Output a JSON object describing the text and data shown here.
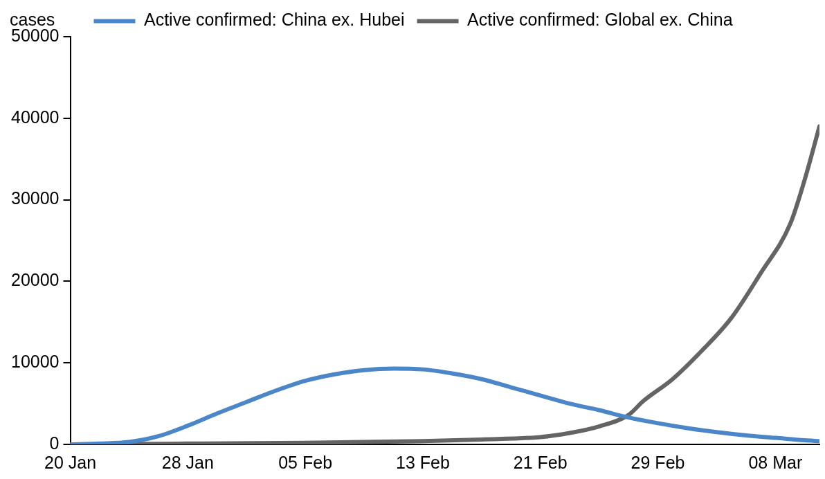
{
  "chart_data": {
    "type": "line",
    "ylabel": "cases",
    "legend": "top",
    "grid": false,
    "marker": "none",
    "line_style": "solid",
    "xlim": [
      "--01-20",
      "--03-11"
    ],
    "xticks": [
      {
        "value": "--01-20",
        "label": "20 Jan"
      },
      {
        "value": "--01-28",
        "label": "28 Jan"
      },
      {
        "value": "--02-05",
        "label": "05 Feb"
      },
      {
        "value": "--02-13",
        "label": "13 Feb"
      },
      {
        "value": "--02-21",
        "label": "21 Feb"
      },
      {
        "value": "--02-29",
        "label": "29 Feb"
      },
      {
        "value": "--03-08",
        "label": "08 Mar"
      }
    ],
    "ylim": [
      0,
      50000
    ],
    "yticks": [
      0,
      10000,
      20000,
      30000,
      40000,
      50000
    ],
    "series": [
      {
        "name": "Active confirmed: China ex. Hubei",
        "color": "#4a86c8",
        "x": [
          "--01-20",
          "--01-22",
          "--01-24",
          "--01-26",
          "--01-28",
          "--01-30",
          "--02-01",
          "--02-03",
          "--02-05",
          "--02-07",
          "--02-09",
          "--02-11",
          "--02-13",
          "--02-15",
          "--02-17",
          "--02-19",
          "--02-21",
          "--02-23",
          "--02-25",
          "--02-27",
          "--02-29",
          "--03-02",
          "--03-04",
          "--03-06",
          "--03-08",
          "--03-10",
          "--03-11"
        ],
        "values": [
          0,
          100,
          300,
          1000,
          2300,
          3800,
          5200,
          6600,
          7800,
          8600,
          9100,
          9300,
          9200,
          8700,
          8000,
          7000,
          6000,
          5000,
          4200,
          3300,
          2600,
          2000,
          1500,
          1100,
          800,
          500,
          400
        ]
      },
      {
        "name": "Active confirmed: Global ex. China",
        "color": "#646464",
        "x": [
          "--01-20",
          "--01-28",
          "--02-05",
          "--02-13",
          "--02-17",
          "--02-21",
          "--02-23",
          "--02-25",
          "--02-27",
          "--02-28",
          "--03-01",
          "--03-03",
          "--03-05",
          "--03-07",
          "--03-09",
          "--03-10",
          "--03-11"
        ],
        "values": [
          0,
          100,
          200,
          400,
          600,
          900,
          1400,
          2200,
          3600,
          5300,
          8000,
          11500,
          15500,
          21000,
          27000,
          32500,
          39000
        ]
      }
    ]
  }
}
